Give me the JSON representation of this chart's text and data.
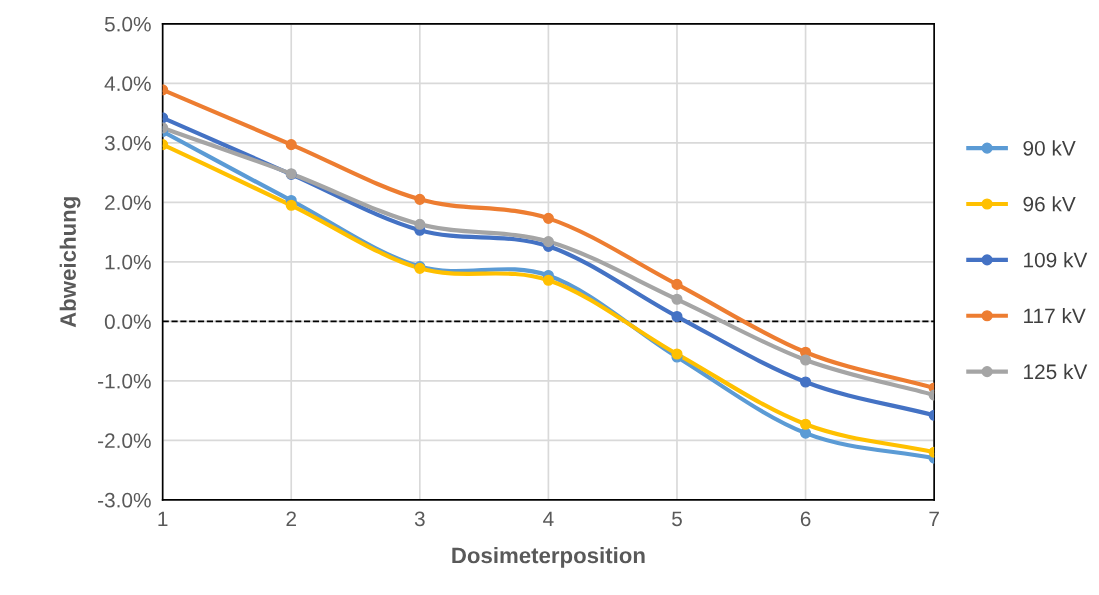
{
  "chart_data": {
    "type": "line",
    "xlabel": "Dosimeterposition",
    "ylabel": "Abweichung",
    "x": [
      1,
      2,
      3,
      4,
      5,
      6,
      7
    ],
    "series": [
      {
        "name": "90 kV",
        "color": "#5b9bd5",
        "values": [
          3.19,
          2.03,
          0.92,
          0.77,
          -0.6,
          -1.88,
          -2.3
        ]
      },
      {
        "name": "96 kV",
        "color": "#ffc000",
        "values": [
          2.97,
          1.95,
          0.89,
          0.69,
          -0.55,
          -1.73,
          -2.2
        ]
      },
      {
        "name": "109 kV",
        "color": "#4472c4",
        "values": [
          3.42,
          2.47,
          1.53,
          1.26,
          0.08,
          -1.02,
          -1.58
        ]
      },
      {
        "name": "117 kV",
        "color": "#ed7d31",
        "values": [
          3.89,
          2.97,
          2.05,
          1.73,
          0.62,
          -0.52,
          -1.12
        ]
      },
      {
        "name": "125 kV",
        "color": "#a5a5a5",
        "values": [
          3.25,
          2.48,
          1.63,
          1.34,
          0.37,
          -0.65,
          -1.24
        ]
      }
    ],
    "xlim": [
      1,
      7
    ],
    "xticks": [
      1,
      2,
      3,
      4,
      5,
      6,
      7
    ],
    "ylim": [
      -3,
      5
    ],
    "yticks": [
      {
        "value": -3,
        "label": "-3.0%"
      },
      {
        "value": -2,
        "label": "-2.0%"
      },
      {
        "value": -1,
        "label": "-1.0%"
      },
      {
        "value": 0,
        "label": "0.0%"
      },
      {
        "value": 1,
        "label": "1.0%"
      },
      {
        "value": 2,
        "label": "2.0%"
      },
      {
        "value": 3,
        "label": "3.0%"
      },
      {
        "value": 4,
        "label": "4.0%"
      },
      {
        "value": 5,
        "label": "5.0%"
      }
    ],
    "ref_lines": [
      {
        "axis": "y",
        "value": 0,
        "color": "#000000",
        "line_style": "dashed"
      }
    ],
    "grid": true,
    "legend": "right",
    "marker": "circle",
    "line_style": "solid"
  }
}
